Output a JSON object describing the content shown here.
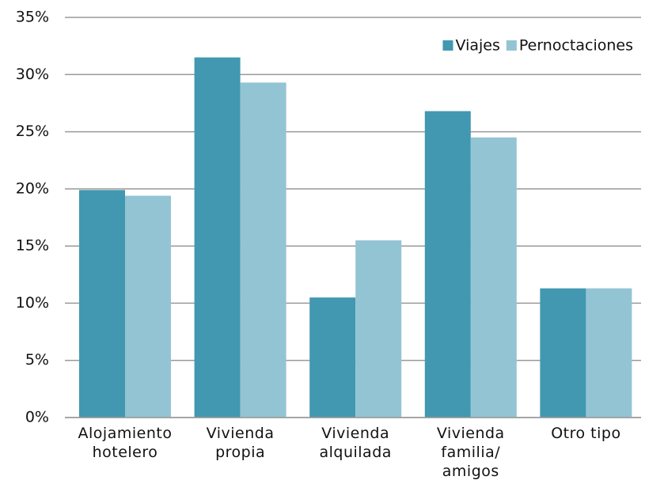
{
  "chart_data": {
    "type": "bar",
    "categories": [
      "Alojamiento\nhotelero",
      "Vivienda\npropia",
      "Vivienda\nalquilada",
      "Vivienda\nfamilia/\namigos",
      "Otro tipo"
    ],
    "series": [
      {
        "name": "Viajes",
        "color": "#4198b0",
        "values": [
          19.9,
          31.5,
          10.5,
          26.8,
          11.3
        ]
      },
      {
        "name": "Pernoctaciones",
        "color": "#93c4d4",
        "values": [
          19.4,
          29.3,
          15.5,
          24.5,
          11.3
        ]
      }
    ],
    "ylim": [
      0,
      35
    ],
    "yticks": [
      {
        "value": 0,
        "label": "0%"
      },
      {
        "value": 5,
        "label": "5%"
      },
      {
        "value": 10,
        "label": "10%"
      },
      {
        "value": 15,
        "label": "15%"
      },
      {
        "value": 20,
        "label": "20%"
      },
      {
        "value": 25,
        "label": "25%"
      },
      {
        "value": 30,
        "label": "30%"
      },
      {
        "value": 35,
        "label": "35%"
      }
    ],
    "grid": true,
    "legend": "top-right"
  }
}
